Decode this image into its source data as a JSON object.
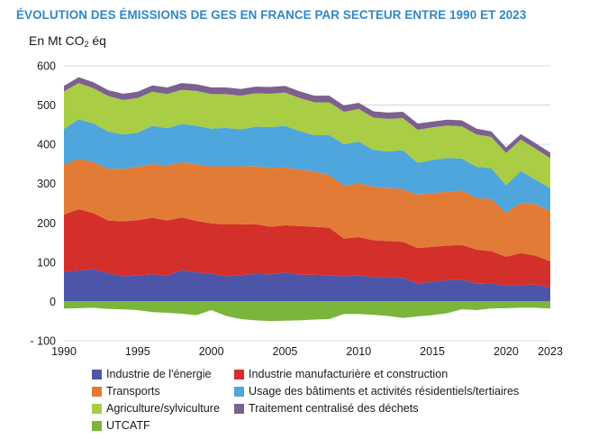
{
  "title": "ÉVOLUTION DES ÉMISSIONS DE GES EN FRANCE PAR SECTEUR ENTRE 1990 ET 2023",
  "unit": {
    "prefix": "En Mt CO",
    "subscript": "2",
    "suffix": " éq"
  },
  "chart_data": {
    "type": "area",
    "stacked": true,
    "title": "ÉVOLUTION DES ÉMISSIONS DE GES EN FRANCE PAR SECTEUR ENTRE 1990 ET 2023",
    "ylabel": "En Mt CO2 éq",
    "xlabel": "",
    "ylim": [
      -100,
      600
    ],
    "xlim": [
      1990,
      2023
    ],
    "y_ticks": [
      -100,
      0,
      100,
      200,
      300,
      400,
      500,
      600
    ],
    "y_tick_labels": [
      "- 100",
      "0",
      "100",
      "200",
      "300",
      "400",
      "500",
      "600"
    ],
    "x_ticks": [
      1990,
      1995,
      2000,
      2005,
      2010,
      2015,
      2020,
      2023
    ],
    "x_tick_labels": [
      "1990",
      "1995",
      "2000",
      "2005",
      "2010",
      "2015",
      "2020",
      "2023"
    ],
    "legend_position": "bottom",
    "x": [
      1990,
      1991,
      1992,
      1993,
      1994,
      1995,
      1996,
      1997,
      1998,
      1999,
      2000,
      2001,
      2002,
      2003,
      2004,
      2005,
      2006,
      2007,
      2008,
      2009,
      2010,
      2011,
      2012,
      2013,
      2014,
      2015,
      2016,
      2017,
      2018,
      2019,
      2020,
      2021,
      2022,
      2023
    ],
    "series": [
      {
        "name": "Industrie de l'énergie",
        "color": "#4d55a9",
        "values": [
          76,
          79,
          82,
          72,
          64,
          66,
          69,
          66,
          80,
          74,
          71,
          64,
          67,
          70,
          69,
          74,
          68,
          68,
          66,
          64,
          66,
          62,
          62,
          60,
          46,
          50,
          54,
          56,
          45,
          46,
          40,
          42,
          43,
          35
        ]
      },
      {
        "name": "Industrie manufacturière et construction",
        "color": "#d32f2b",
        "values": [
          145,
          156,
          143,
          134,
          140,
          141,
          144,
          140,
          134,
          131,
          128,
          132,
          129,
          127,
          121,
          120,
          124,
          122,
          122,
          96,
          98,
          94,
          92,
          92,
          90,
          89,
          88,
          88,
          87,
          82,
          74,
          81,
          74,
          67
        ]
      },
      {
        "name": "Transports",
        "color": "#e27b36",
        "values": [
          128,
          128,
          130,
          132,
          134,
          136,
          137,
          140,
          141,
          144,
          145,
          148,
          148,
          148,
          150,
          147,
          144,
          141,
          134,
          135,
          137,
          136,
          135,
          134,
          136,
          137,
          137,
          139,
          131,
          133,
          112,
          128,
          131,
          128
        ]
      },
      {
        "name": "Usage des bâtiments et activités résidentiels/tertiaires",
        "color": "#4ea6dd",
        "values": [
          90,
          101,
          98,
          95,
          87,
          87,
          97,
          95,
          97,
          98,
          96,
          98,
          94,
          100,
          104,
          106,
          98,
          92,
          102,
          105,
          106,
          94,
          93,
          99,
          81,
          84,
          86,
          81,
          80,
          78,
          70,
          81,
          62,
          58
        ]
      },
      {
        "name": "Agriculture/sylviculture",
        "color": "#a9cd44",
        "values": [
          96,
          92,
          90,
          90,
          88,
          88,
          87,
          87,
          87,
          89,
          88,
          86,
          86,
          85,
          85,
          85,
          84,
          84,
          83,
          83,
          83,
          82,
          83,
          82,
          84,
          83,
          83,
          82,
          82,
          80,
          82,
          80,
          79,
          77
        ]
      },
      {
        "name": "Traitement centralisé des déchets",
        "color": "#7c6090",
        "values": [
          14,
          15,
          15,
          15,
          16,
          16,
          16,
          17,
          17,
          17,
          17,
          17,
          17,
          17,
          17,
          17,
          17,
          17,
          17,
          16,
          16,
          16,
          16,
          16,
          16,
          15,
          15,
          15,
          15,
          14,
          14,
          14,
          14,
          14
        ]
      },
      {
        "name": "UTCATF",
        "color": "#7bb53b",
        "values": [
          -18,
          -17,
          -16,
          -19,
          -20,
          -22,
          -27,
          -29,
          -31,
          -35,
          -22,
          -37,
          -45,
          -48,
          -50,
          -49,
          -48,
          -46,
          -45,
          -32,
          -32,
          -34,
          -37,
          -42,
          -38,
          -35,
          -30,
          -20,
          -22,
          -18,
          -17,
          -16,
          -16,
          -18
        ]
      }
    ]
  },
  "legend": [
    {
      "label": "Industrie de l'énergie",
      "color": "#4d55a9"
    },
    {
      "label": "Industrie manufacturière et construction",
      "color": "#d32f2b"
    },
    {
      "label": "Transports",
      "color": "#e27b36"
    },
    {
      "label": "Usage des bâtiments et activités résidentiels/tertiaires",
      "color": "#4ea6dd"
    },
    {
      "label": "Agriculture/sylviculture",
      "color": "#a9cd44"
    },
    {
      "label": "Traitement centralisé des déchets",
      "color": "#7c6090"
    },
    {
      "label": "UTCATF",
      "color": "#7bb53b"
    }
  ]
}
